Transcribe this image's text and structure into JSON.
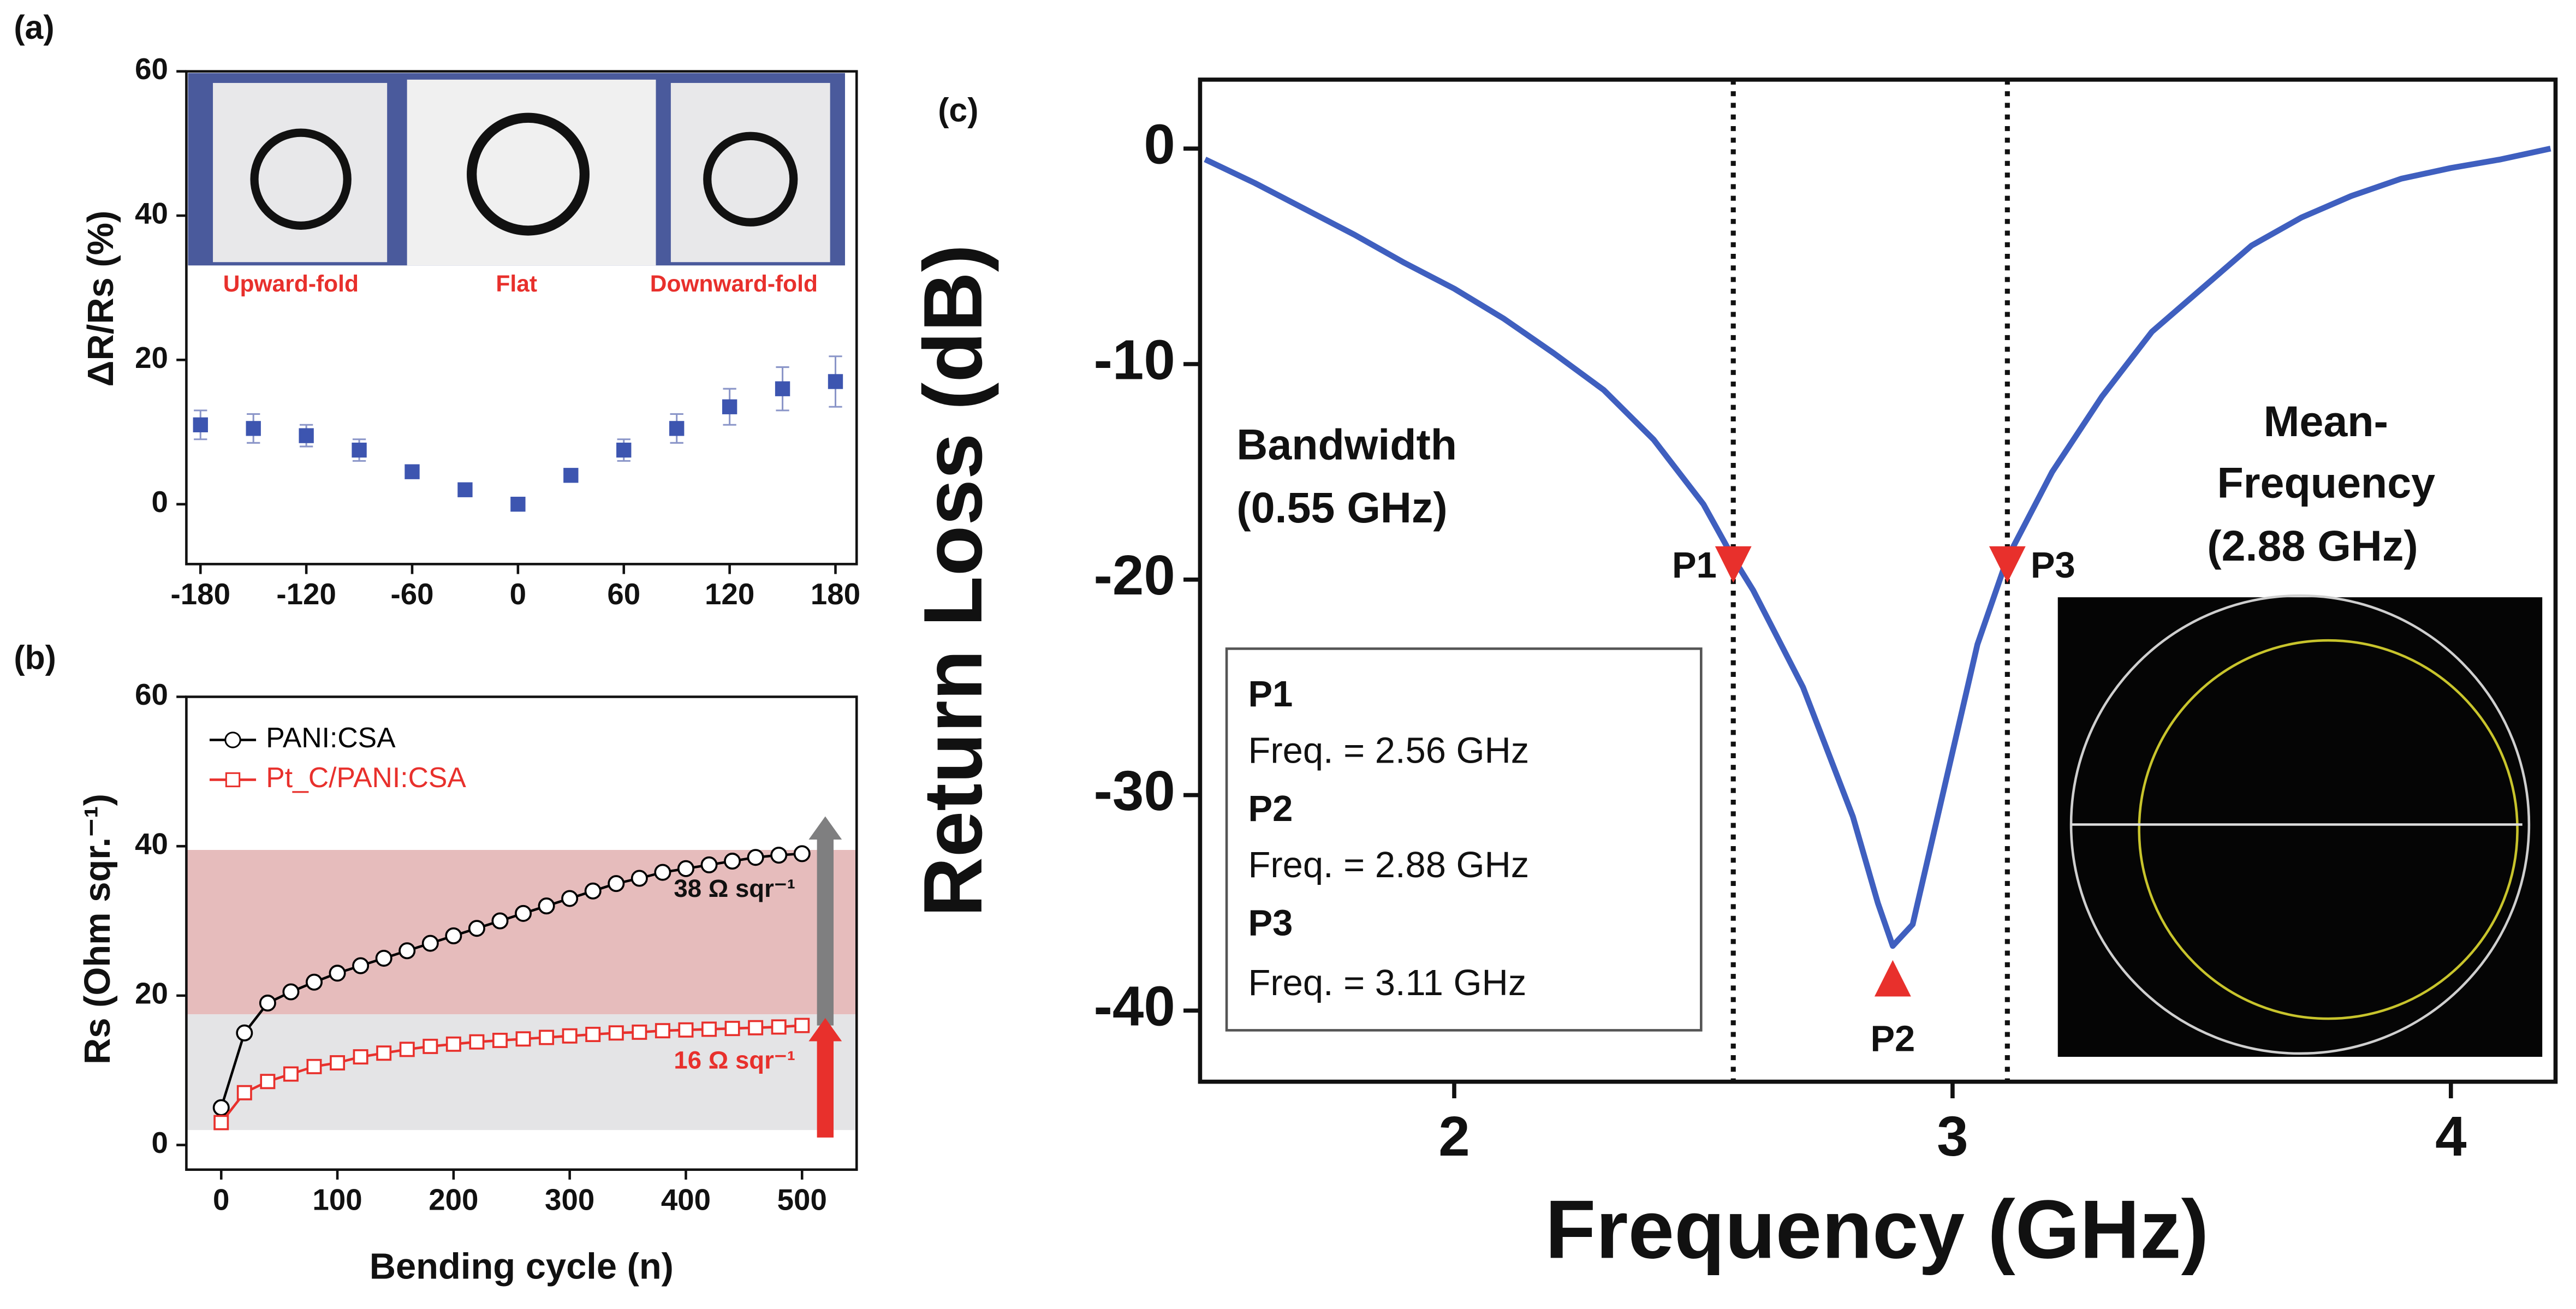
{
  "panel_labels": [
    "(a)",
    "(b)",
    "(c)"
  ],
  "chart_data": [
    {
      "type": "scatter",
      "ylabel": "ΔR/Rs (%)",
      "inset_labels": [
        "Upward-fold",
        "Flat",
        "Downward-fold"
      ],
      "x": [
        -180,
        -150,
        -120,
        -90,
        -60,
        -30,
        0,
        30,
        60,
        90,
        120,
        150,
        180
      ],
      "values": [
        11,
        10.5,
        9.5,
        7.5,
        4.5,
        2,
        0,
        4,
        7.5,
        10.5,
        13.5,
        16,
        17
      ],
      "errors": [
        2,
        2,
        1.5,
        1.5,
        0.5,
        0.5,
        0.5,
        0.5,
        1.5,
        2,
        2.5,
        3,
        3.5
      ],
      "color": "#3d55b0",
      "xlim": [
        -188,
        192
      ],
      "ylim": [
        -8.3,
        60
      ],
      "xticks": [
        -180,
        -120,
        -60,
        0,
        60,
        120,
        180
      ],
      "yticks": [
        0,
        20,
        40,
        60
      ]
    },
    {
      "type": "line",
      "xlabel": "Bending cycle (n)",
      "ylabel": "Rs (Ohm sqr.⁻¹)",
      "x": [
        0,
        20,
        40,
        60,
        80,
        100,
        120,
        140,
        160,
        180,
        200,
        220,
        240,
        260,
        280,
        300,
        320,
        340,
        360,
        380,
        400,
        420,
        440,
        460,
        480,
        500
      ],
      "series": [
        {
          "name": "PANI:CSA",
          "color": "#000000",
          "marker": "circle",
          "values": [
            5,
            15,
            19,
            20.5,
            21.8,
            23,
            24,
            25,
            26,
            27,
            28,
            29,
            30,
            31,
            32,
            33,
            34,
            35,
            35.7,
            36.5,
            37,
            37.5,
            38,
            38.5,
            38.8,
            39
          ]
        },
        {
          "name": "Pt_C/PANI:CSA",
          "color": "#e8302c",
          "marker": "square",
          "values": [
            3,
            7,
            8.5,
            9.5,
            10.5,
            11,
            11.8,
            12.3,
            12.8,
            13.2,
            13.5,
            13.8,
            14,
            14.2,
            14.4,
            14.6,
            14.8,
            15,
            15.1,
            15.3,
            15.4,
            15.5,
            15.6,
            15.7,
            15.8,
            16
          ]
        }
      ],
      "bands": [
        {
          "from": 17.5,
          "to": 39.5,
          "color": "#e6bcbc"
        },
        {
          "from": 2,
          "to": 17.5,
          "color": "#e4e4e6"
        }
      ],
      "arrows": [
        {
          "x": 520,
          "from": 16,
          "to": 44,
          "color": "#7f7f80"
        },
        {
          "x": 520,
          "from": 1,
          "to": 17,
          "color": "#e8302c"
        }
      ],
      "annotations": [
        "38 Ω sqr⁻¹",
        "16 Ω sqr⁻¹"
      ],
      "xlim": [
        -30,
        547
      ],
      "ylim": [
        -3.3,
        60
      ],
      "xticks": [
        0,
        100,
        200,
        300,
        400,
        500
      ],
      "yticks": [
        0,
        20,
        40,
        60
      ]
    },
    {
      "type": "line",
      "xlabel": "Frequency (GHz)",
      "ylabel": "Return Loss (dB)",
      "x": [
        1.5,
        1.6,
        1.7,
        1.8,
        1.9,
        2.0,
        2.1,
        2.2,
        2.3,
        2.4,
        2.5,
        2.56,
        2.6,
        2.7,
        2.8,
        2.85,
        2.88,
        2.92,
        2.96,
        3.0,
        3.05,
        3.11,
        3.2,
        3.3,
        3.4,
        3.5,
        3.6,
        3.7,
        3.8,
        3.9,
        4.0,
        4.1,
        4.2
      ],
      "series": [
        {
          "color": "#3f5fbf",
          "values": [
            -0.5,
            -1.6,
            -2.8,
            -4,
            -5.3,
            -6.5,
            -7.9,
            -9.5,
            -11.2,
            -13.5,
            -16.5,
            -19,
            -20.5,
            -25,
            -31,
            -35,
            -37,
            -36,
            -32,
            -28,
            -23,
            -19,
            -15,
            -11.5,
            -8.5,
            -6.5,
            -4.5,
            -3.2,
            -2.2,
            -1.4,
            -0.9,
            -0.5,
            0
          ]
        }
      ],
      "vlines": [
        2.56,
        3.11
      ],
      "markers": [
        {
          "label": "P1",
          "x": 2.56,
          "y": -19.3,
          "shape": "down"
        },
        {
          "label": "P2",
          "x": 2.88,
          "y": -38.5,
          "shape": "up"
        },
        {
          "label": "P3",
          "x": 3.11,
          "y": -19.3,
          "shape": "down"
        }
      ],
      "marker_color": "#e8302c",
      "annotations": [
        "Bandwidth",
        "(0.55 GHz)",
        "Mean-",
        "Frequency",
        "(2.88 GHz)"
      ],
      "box": [
        "P1",
        "Freq. = 2.56 GHz",
        "P2",
        "Freq. = 2.88 GHz",
        "P3",
        "Freq. = 3.11 GHz"
      ],
      "xlim": [
        1.49,
        4.21
      ],
      "ylim": [
        -43.3,
        3.2
      ],
      "xticks": [
        2,
        3,
        4
      ],
      "yticks": [
        0,
        -10,
        -20,
        -30,
        -40
      ]
    }
  ]
}
